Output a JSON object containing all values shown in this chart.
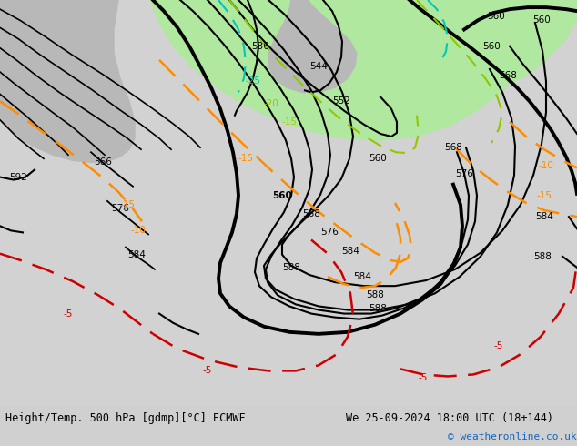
{
  "title_left": "Height/Temp. 500 hPa [gdmp][°C] ECMWF",
  "title_right": "We 25-09-2024 18:00 UTC (18+144)",
  "copyright": "© weatheronline.co.uk",
  "bg_color": "#d0d0d0",
  "green_color": "#b0e8a0",
  "fig_width": 6.34,
  "fig_height": 4.9,
  "dpi": 100,
  "bottom_bg": "#e8e8e8"
}
